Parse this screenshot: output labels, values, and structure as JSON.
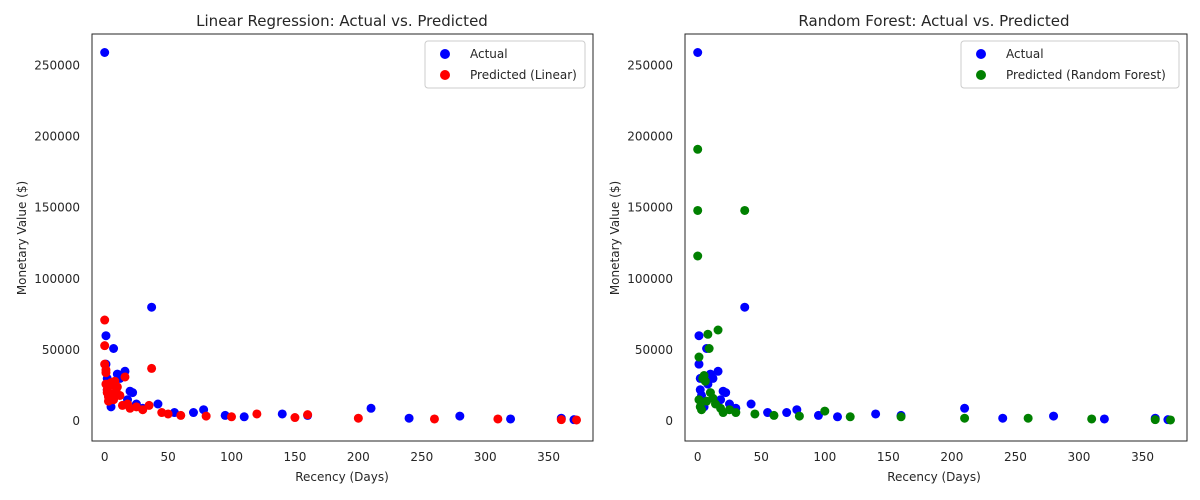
{
  "chart_data": [
    {
      "type": "scatter",
      "title": "Linear Regression: Actual vs. Predicted",
      "xlabel": "Recency (Days)",
      "ylabel": "Monetary Value ($)",
      "xlim": [
        -10,
        385
      ],
      "ylim": [
        -14000,
        272000
      ],
      "xticks": [
        0,
        50,
        100,
        150,
        200,
        250,
        300,
        350
      ],
      "yticks": [
        0,
        50000,
        100000,
        150000,
        200000,
        250000
      ],
      "grid": false,
      "legend_position": "top-right",
      "series": [
        {
          "name": "Actual",
          "color": "#0000ff",
          "points": [
            [
              0,
              259000
            ],
            [
              1,
              60000
            ],
            [
              1,
              40000
            ],
            [
              2,
              30000
            ],
            [
              2,
              22000
            ],
            [
              3,
              18000
            ],
            [
              4,
              14000
            ],
            [
              5,
              10000
            ],
            [
              7,
              51000
            ],
            [
              8,
              26000
            ],
            [
              10,
              33000
            ],
            [
              12,
              30000
            ],
            [
              16,
              35000
            ],
            [
              18,
              15000
            ],
            [
              20,
              21000
            ],
            [
              22,
              20000
            ],
            [
              25,
              12000
            ],
            [
              30,
              9000
            ],
            [
              37,
              80000
            ],
            [
              42,
              12000
            ],
            [
              55,
              6000
            ],
            [
              70,
              6000
            ],
            [
              78,
              8000
            ],
            [
              95,
              4000
            ],
            [
              110,
              3000
            ],
            [
              140,
              5000
            ],
            [
              160,
              4000
            ],
            [
              210,
              9000
            ],
            [
              240,
              2000
            ],
            [
              280,
              3500
            ],
            [
              320,
              1500
            ],
            [
              360,
              2000
            ],
            [
              370,
              1000
            ]
          ]
        },
        {
          "name": "Predicted (Linear)",
          "color": "#ff0000",
          "points": [
            [
              0,
              71000
            ],
            [
              0,
              53000
            ],
            [
              0,
              40000
            ],
            [
              1,
              36000
            ],
            [
              1,
              34000
            ],
            [
              1,
              26000
            ],
            [
              2,
              22000
            ],
            [
              2,
              20000
            ],
            [
              3,
              17000
            ],
            [
              3,
              14000
            ],
            [
              4,
              25000
            ],
            [
              5,
              27000
            ],
            [
              6,
              19000
            ],
            [
              7,
              15000
            ],
            [
              8,
              28000
            ],
            [
              9,
              21000
            ],
            [
              10,
              24000
            ],
            [
              12,
              18000
            ],
            [
              14,
              11000
            ],
            [
              16,
              31000
            ],
            [
              18,
              12000
            ],
            [
              20,
              9000
            ],
            [
              25,
              10000
            ],
            [
              30,
              8000
            ],
            [
              37,
              37000
            ],
            [
              35,
              11000
            ],
            [
              45,
              6000
            ],
            [
              50,
              5000
            ],
            [
              60,
              4000
            ],
            [
              80,
              3500
            ],
            [
              100,
              3000
            ],
            [
              120,
              5000
            ],
            [
              150,
              2500
            ],
            [
              160,
              4500
            ],
            [
              200,
              2000
            ],
            [
              260,
              1500
            ],
            [
              310,
              1500
            ],
            [
              360,
              1000
            ],
            [
              372,
              800
            ]
          ]
        }
      ]
    },
    {
      "type": "scatter",
      "title": "Random Forest: Actual vs. Predicted",
      "xlabel": "Recency (Days)",
      "ylabel": "Monetary Value ($)",
      "xlim": [
        -10,
        385
      ],
      "ylim": [
        -14000,
        272000
      ],
      "xticks": [
        0,
        50,
        100,
        150,
        200,
        250,
        300,
        350
      ],
      "yticks": [
        0,
        50000,
        100000,
        150000,
        200000,
        250000
      ],
      "grid": false,
      "legend_position": "top-right",
      "series": [
        {
          "name": "Actual",
          "color": "#0000ff",
          "points": [
            [
              0,
              259000
            ],
            [
              1,
              60000
            ],
            [
              1,
              40000
            ],
            [
              2,
              30000
            ],
            [
              2,
              22000
            ],
            [
              3,
              18000
            ],
            [
              4,
              14000
            ],
            [
              5,
              10000
            ],
            [
              7,
              51000
            ],
            [
              8,
              26000
            ],
            [
              10,
              33000
            ],
            [
              12,
              30000
            ],
            [
              16,
              35000
            ],
            [
              18,
              15000
            ],
            [
              20,
              21000
            ],
            [
              22,
              20000
            ],
            [
              25,
              12000
            ],
            [
              30,
              9000
            ],
            [
              37,
              80000
            ],
            [
              42,
              12000
            ],
            [
              55,
              6000
            ],
            [
              70,
              6000
            ],
            [
              78,
              8000
            ],
            [
              95,
              4000
            ],
            [
              110,
              3000
            ],
            [
              140,
              5000
            ],
            [
              160,
              4000
            ],
            [
              210,
              9000
            ],
            [
              240,
              2000
            ],
            [
              280,
              3500
            ],
            [
              320,
              1500
            ],
            [
              360,
              2000
            ],
            [
              370,
              1000
            ]
          ]
        },
        {
          "name": "Predicted (Random Forest)",
          "color": "#008000",
          "points": [
            [
              0,
              191000
            ],
            [
              0,
              148000
            ],
            [
              0,
              116000
            ],
            [
              1,
              45000
            ],
            [
              1,
              15000
            ],
            [
              2,
              10000
            ],
            [
              3,
              8000
            ],
            [
              4,
              30000
            ],
            [
              5,
              32000
            ],
            [
              6,
              28000
            ],
            [
              7,
              14000
            ],
            [
              8,
              61000
            ],
            [
              9,
              51000
            ],
            [
              10,
              20000
            ],
            [
              12,
              16000
            ],
            [
              14,
              12000
            ],
            [
              16,
              64000
            ],
            [
              18,
              9000
            ],
            [
              20,
              6000
            ],
            [
              25,
              8000
            ],
            [
              30,
              6000
            ],
            [
              37,
              148000
            ],
            [
              45,
              5000
            ],
            [
              60,
              4000
            ],
            [
              80,
              3500
            ],
            [
              100,
              7000
            ],
            [
              120,
              3000
            ],
            [
              160,
              3000
            ],
            [
              210,
              2000
            ],
            [
              260,
              2000
            ],
            [
              310,
              1500
            ],
            [
              360,
              1000
            ],
            [
              372,
              800
            ]
          ]
        }
      ]
    }
  ]
}
